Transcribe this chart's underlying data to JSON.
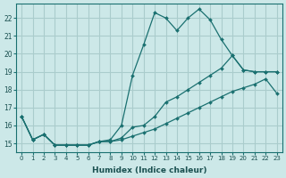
{
  "xlabel": "Humidex (Indice chaleur)",
  "bg_color": "#cce8e8",
  "grid_color": "#aacccc",
  "line_color": "#1a7070",
  "xlim": [
    -0.5,
    23.5
  ],
  "ylim": [
    14.5,
    22.8
  ],
  "xticks": [
    0,
    1,
    2,
    3,
    4,
    5,
    6,
    7,
    8,
    9,
    10,
    11,
    12,
    13,
    14,
    15,
    16,
    17,
    18,
    19,
    20,
    21,
    22,
    23
  ],
  "yticks": [
    15,
    16,
    17,
    18,
    19,
    20,
    21,
    22
  ],
  "line1_y": [
    16.5,
    15.2,
    15.5,
    14.9,
    14.9,
    14.9,
    14.9,
    15.1,
    15.1,
    15.2,
    15.4,
    15.6,
    15.8,
    16.1,
    16.4,
    16.7,
    17.0,
    17.3,
    17.6,
    17.9,
    18.1,
    18.3,
    18.6,
    17.8
  ],
  "line2_y": [
    16.5,
    15.2,
    15.5,
    14.9,
    14.9,
    14.9,
    14.9,
    15.1,
    15.1,
    15.3,
    15.9,
    16.0,
    16.5,
    17.3,
    17.6,
    18.0,
    18.4,
    18.8,
    19.2,
    19.9,
    19.1,
    19.0,
    19.0,
    19.0
  ],
  "line3_y": [
    16.5,
    15.2,
    15.5,
    14.9,
    14.9,
    14.9,
    14.9,
    15.1,
    15.2,
    16.0,
    18.8,
    20.5,
    22.3,
    22.0,
    21.3,
    22.0,
    22.5,
    21.9,
    20.8,
    19.9,
    19.1,
    19.0,
    19.0,
    19.0
  ]
}
